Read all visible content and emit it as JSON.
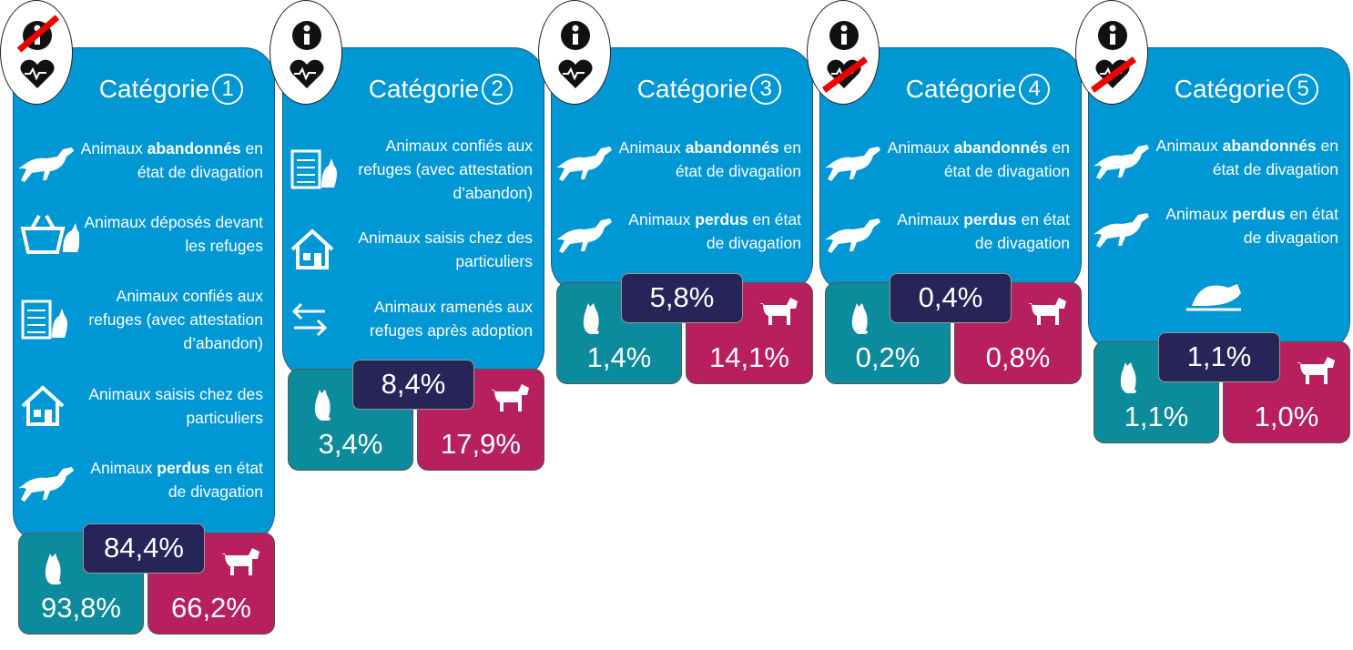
{
  "cards": [
    {
      "title": "Catégorie",
      "number": "1",
      "info_crossed": true,
      "heart_crossed": false,
      "items": [
        {
          "icon": "running-dog",
          "segments": [
            {
              "text": "Animaux "
            },
            {
              "text": "abandonnés",
              "bold": true
            },
            {
              "text": " en état de divagation"
            }
          ]
        },
        {
          "icon": "basket",
          "segments": [
            {
              "text": "Animaux déposés devant les refuges"
            }
          ]
        },
        {
          "icon": "checklist",
          "segments": [
            {
              "text": "Animaux confiés aux refuges (avec attestation d’abandon)"
            }
          ]
        },
        {
          "icon": "house",
          "segments": [
            {
              "text": "Animaux saisis chez des particuliers"
            }
          ]
        },
        {
          "icon": "running-dog",
          "segments": [
            {
              "text": "Animaux "
            },
            {
              "text": "perdus",
              "bold": true
            },
            {
              "text": " en état de divagation"
            }
          ]
        }
      ],
      "total": "84,4%",
      "cats": "93,8%",
      "dogs": "66,2%"
    },
    {
      "title": "Catégorie",
      "number": "2",
      "info_crossed": false,
      "heart_crossed": false,
      "items": [
        {
          "icon": "checklist",
          "segments": [
            {
              "text": "Animaux confiés aux refuges (avec attestation d’abandon)"
            }
          ]
        },
        {
          "icon": "house",
          "segments": [
            {
              "text": "Animaux saisis chez des particuliers"
            }
          ]
        },
        {
          "icon": "arrows",
          "segments": [
            {
              "text": "Animaux ramenés aux refuges après adoption"
            }
          ]
        }
      ],
      "total": "8,4%",
      "cats": "3,4%",
      "dogs": "17,9%"
    },
    {
      "title": "Catégorie",
      "number": "3",
      "info_crossed": false,
      "heart_crossed": false,
      "items": [
        {
          "icon": "running-dog",
          "segments": [
            {
              "text": "Animaux "
            },
            {
              "text": "abandonnés",
              "bold": true
            },
            {
              "text": " en état de divagation"
            }
          ]
        },
        {
          "icon": "running-dog",
          "segments": [
            {
              "text": "Animaux "
            },
            {
              "text": "perdus",
              "bold": true
            },
            {
              "text": " en état de divagation"
            }
          ]
        }
      ],
      "total": "5,8%",
      "cats": "1,4%",
      "dogs": "14,1%"
    },
    {
      "title": "Catégorie",
      "number": "4",
      "info_crossed": false,
      "heart_crossed": true,
      "items": [
        {
          "icon": "running-dog",
          "segments": [
            {
              "text": "Animaux "
            },
            {
              "text": "abandonnés",
              "bold": true
            },
            {
              "text": " en état de divagation"
            }
          ]
        },
        {
          "icon": "running-dog",
          "segments": [
            {
              "text": "Animaux "
            },
            {
              "text": "perdus",
              "bold": true
            },
            {
              "text": " en état de divagation"
            }
          ]
        }
      ],
      "total": "0,4%",
      "cats": "0,2%",
      "dogs": "0,8%"
    },
    {
      "title": "Catégorie",
      "number": "5",
      "info_crossed": false,
      "heart_crossed": true,
      "items": [
        {
          "icon": "running-dog",
          "segments": [
            {
              "text": "Animaux "
            },
            {
              "text": "abandonnés",
              "bold": true
            },
            {
              "text": " en état de divagation"
            }
          ]
        },
        {
          "icon": "running-dog",
          "segments": [
            {
              "text": "Animaux "
            },
            {
              "text": "perdus",
              "bold": true
            },
            {
              "text": " en état de divagation"
            }
          ]
        },
        {
          "icon": "dead-animal",
          "segments": []
        }
      ],
      "total": "1,1%",
      "cats": "1,1%",
      "dogs": "1,0%"
    }
  ]
}
